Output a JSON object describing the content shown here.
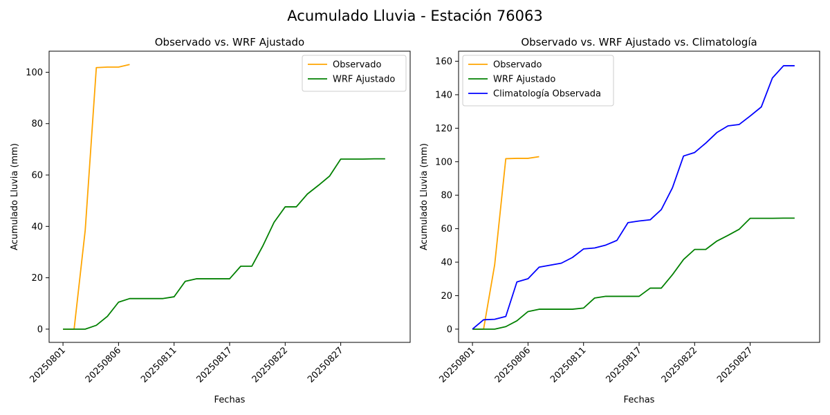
{
  "figure": {
    "title": "Acumulado Lluvia - Estación 76063"
  },
  "colors": {
    "observado": "#ffa500",
    "wrf": "#008000",
    "climatologia": "#0000ff",
    "axes": "#000000",
    "background": "#ffffff"
  },
  "chart_data": [
    {
      "type": "line",
      "title": "Observado vs. WRF Ajustado",
      "xlabel": "Fechas",
      "ylabel": "Acumulado Lluvia (mm)",
      "x_ticks": [
        "20250801",
        "20250806",
        "20250811",
        "20250817",
        "20250822",
        "20250827"
      ],
      "xlim": [
        0,
        30
      ],
      "ylim": [
        -5.15,
        108.2
      ],
      "y_ticks": [
        0,
        20,
        40,
        60,
        80,
        100
      ],
      "grid": false,
      "legend": "top-right",
      "series": [
        {
          "name": "Observado",
          "color_key": "observado",
          "x": [
            0,
            1,
            2,
            3,
            4,
            5,
            6
          ],
          "y": [
            0,
            0,
            38.5,
            101.8,
            102,
            102,
            103
          ]
        },
        {
          "name": "WRF Ajustado",
          "color_key": "wrf",
          "x": [
            0,
            1,
            2,
            3,
            4,
            5,
            6,
            7,
            8,
            9,
            10,
            11,
            12,
            13,
            14,
            15,
            16,
            17,
            18,
            19,
            20,
            21,
            22,
            23,
            24,
            25,
            26,
            27,
            28,
            29
          ],
          "y": [
            0,
            0,
            0,
            1.5,
            5,
            10.5,
            11.9,
            11.9,
            11.9,
            11.9,
            12.6,
            18.6,
            19.6,
            19.6,
            19.6,
            19.6,
            24.5,
            24.5,
            32.5,
            41.6,
            47.6,
            47.6,
            52.6,
            56,
            59.6,
            66.2,
            66.2,
            66.2,
            66.3,
            66.3
          ]
        }
      ]
    },
    {
      "type": "line",
      "title": "Observado vs. WRF Ajustado vs. Climatología",
      "xlabel": "Fechas",
      "ylabel": "Acumulado Lluvia (mm)",
      "x_ticks": [
        "20250801",
        "20250806",
        "20250811",
        "20250817",
        "20250822",
        "20250827"
      ],
      "xlim": [
        0,
        30
      ],
      "ylim": [
        -7.9,
        166.0
      ],
      "y_ticks": [
        0,
        20,
        40,
        60,
        80,
        100,
        120,
        140,
        160
      ],
      "grid": false,
      "legend": "top-left",
      "series": [
        {
          "name": "Observado",
          "color_key": "observado",
          "x": [
            0,
            1,
            2,
            3,
            4,
            5,
            6
          ],
          "y": [
            0,
            0,
            38.5,
            101.8,
            102,
            102,
            103
          ]
        },
        {
          "name": "WRF Ajustado",
          "color_key": "wrf",
          "x": [
            0,
            1,
            2,
            3,
            4,
            5,
            6,
            7,
            8,
            9,
            10,
            11,
            12,
            13,
            14,
            15,
            16,
            17,
            18,
            19,
            20,
            21,
            22,
            23,
            24,
            25,
            26,
            27,
            28,
            29
          ],
          "y": [
            0,
            0,
            0,
            1.5,
            5,
            10.5,
            11.9,
            11.9,
            11.9,
            11.9,
            12.6,
            18.6,
            19.6,
            19.6,
            19.6,
            19.6,
            24.5,
            24.5,
            32.5,
            41.6,
            47.6,
            47.6,
            52.6,
            56,
            59.6,
            66.2,
            66.2,
            66.2,
            66.3,
            66.3
          ]
        },
        {
          "name": "Climatología Observada",
          "color_key": "climatologia",
          "x": [
            0,
            1,
            2,
            3,
            4,
            5,
            6,
            7,
            8,
            9,
            10,
            11,
            12,
            13,
            14,
            15,
            16,
            17,
            18,
            19,
            20,
            21,
            22,
            23,
            24,
            25,
            26,
            27,
            28,
            29
          ],
          "y": [
            0,
            5.6,
            5.9,
            7.6,
            28.2,
            30.1,
            37,
            38.2,
            39.4,
            42.8,
            47.9,
            48.5,
            50.2,
            53,
            63.6,
            64.6,
            65.3,
            71.4,
            84.4,
            103.4,
            105.5,
            111.1,
            117.4,
            121.4,
            122.2,
            127.3,
            132.7,
            150,
            157.3,
            157.3
          ]
        }
      ]
    }
  ]
}
